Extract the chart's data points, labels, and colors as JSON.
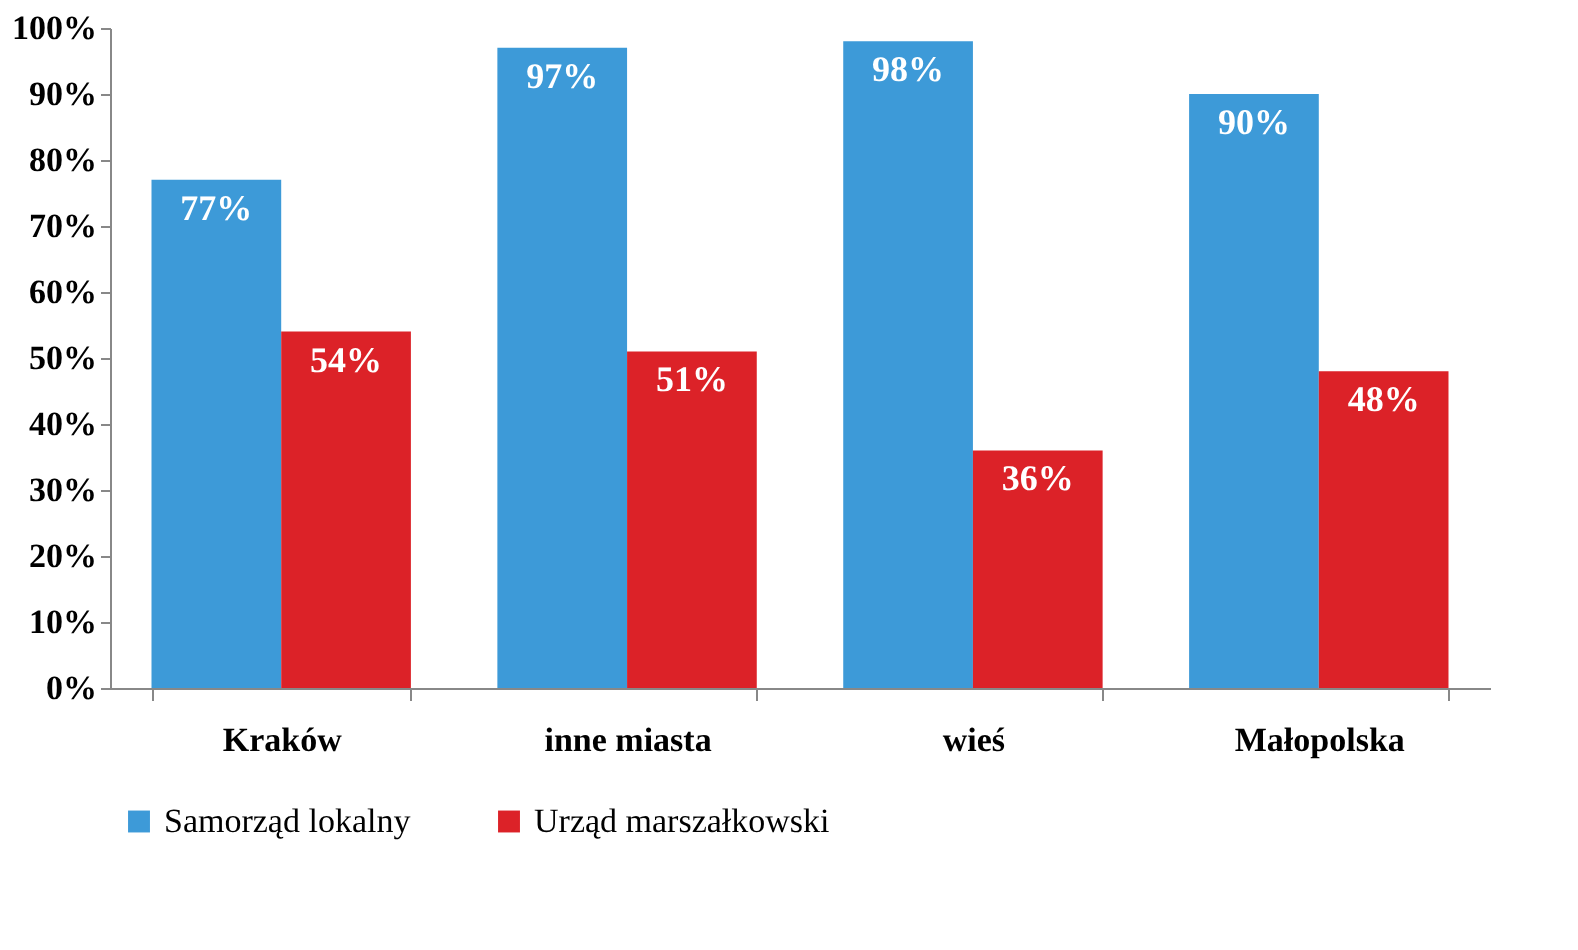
{
  "chart_data": {
    "type": "bar",
    "categories": [
      "Kraków",
      "inne miasta",
      "wieś",
      "Małopolska"
    ],
    "series": [
      {
        "name": "Samorząd lokalny",
        "color": "#3d9ad8",
        "values": [
          77,
          97,
          98,
          90
        ]
      },
      {
        "name": "Urząd marszałkowski",
        "color": "#dc2228",
        "values": [
          54,
          51,
          36,
          48
        ]
      }
    ],
    "ylim": [
      0,
      100
    ],
    "yticks": [
      {
        "value": 0,
        "label": "0%"
      },
      {
        "value": 10,
        "label": "10%"
      },
      {
        "value": 20,
        "label": "20%"
      },
      {
        "value": 30,
        "label": "30%"
      },
      {
        "value": 40,
        "label": "40%"
      },
      {
        "value": 50,
        "label": "50%"
      },
      {
        "value": 60,
        "label": "60%"
      },
      {
        "value": 70,
        "label": "70%"
      },
      {
        "value": 80,
        "label": "80%"
      },
      {
        "value": 90,
        "label": "90%"
      },
      {
        "value": 100,
        "label": "100%"
      }
    ],
    "value_labels": [
      [
        "77%",
        "97%",
        "98%",
        "90%"
      ],
      [
        "54%",
        "51%",
        "36%",
        "48%"
      ]
    ],
    "grid": false,
    "legend": "bottom"
  }
}
